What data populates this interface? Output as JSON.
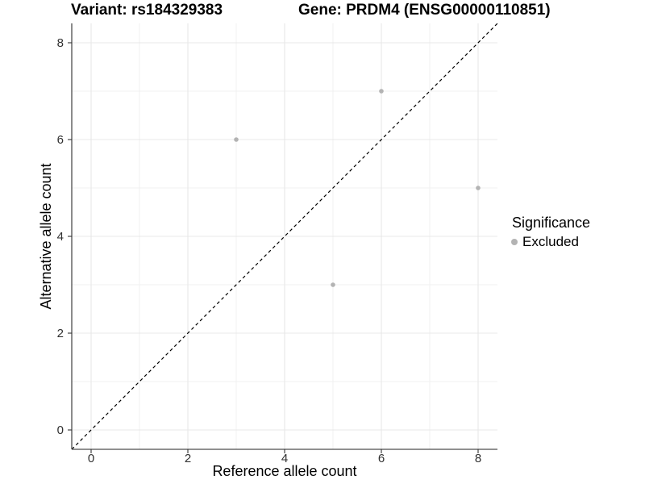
{
  "chart_data": {
    "type": "scatter",
    "title_left": "Variant: rs184329383",
    "title_right": "Gene: PRDM4 (ENSG00000110851)",
    "xlabel": "Reference allele count",
    "ylabel": "Alternative allele count",
    "xlim": [
      -0.4,
      8.4
    ],
    "ylim": [
      -0.4,
      8.4
    ],
    "xticks": [
      0,
      2,
      4,
      6,
      8
    ],
    "yticks": [
      0,
      2,
      4,
      6,
      8
    ],
    "xticks_minor": [
      1,
      3,
      5,
      7
    ],
    "yticks_minor": [
      1,
      3,
      5,
      7
    ],
    "grid": "on",
    "identity_line": {
      "style": "dashed",
      "from": [
        -0.4,
        -0.4
      ],
      "to": [
        8.4,
        8.4
      ],
      "color": "#000000"
    },
    "series": [
      {
        "name": "Excluded",
        "color": "#b3b3b3",
        "points": [
          [
            3,
            6
          ],
          [
            6,
            7
          ],
          [
            5,
            3
          ],
          [
            8,
            5
          ]
        ]
      }
    ],
    "legend": {
      "title": "Significance",
      "position": "right",
      "items": [
        {
          "label": "Excluded",
          "color": "#b3b3b3",
          "marker": "circle"
        }
      ]
    },
    "style": {
      "grid_major_color": "#e8e8e8",
      "grid_minor_color": "#f1f1f1",
      "axis_color": "#4d4d4d",
      "tick_color": "#333333",
      "point_radius": 2.8
    }
  }
}
